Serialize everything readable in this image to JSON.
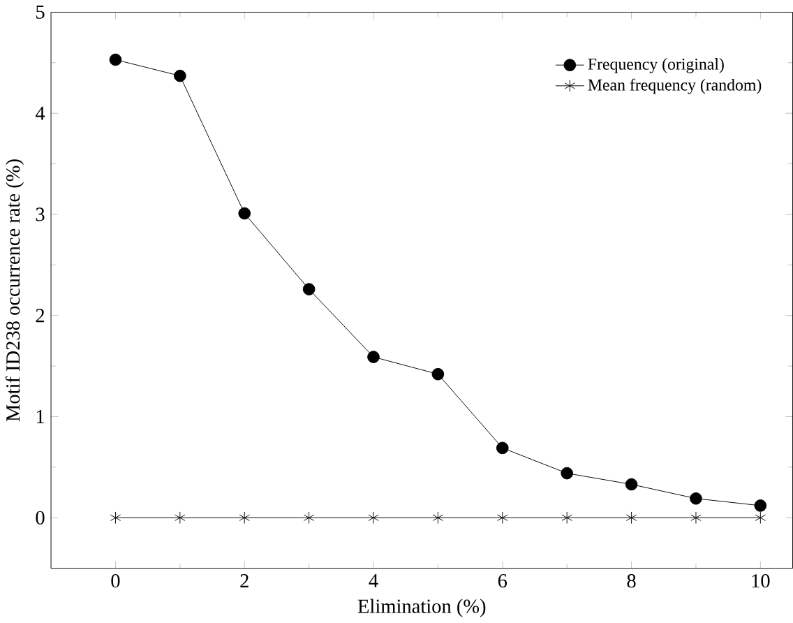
{
  "chart_data": {
    "type": "line",
    "xlabel": "Elimination (%)",
    "ylabel": "Motif ID238 occurrence rate (%)",
    "x": [
      0,
      1,
      2,
      3,
      4,
      5,
      6,
      7,
      8,
      9,
      10
    ],
    "series": [
      {
        "name": "Frequency (original)",
        "color": "#000000",
        "marker": "circle",
        "values": [
          4.53,
          4.37,
          3.01,
          2.26,
          1.59,
          1.42,
          0.69,
          0.44,
          0.33,
          0.19,
          0.12
        ]
      },
      {
        "name": "Mean frequency (random)",
        "color": "#000000",
        "marker": "cross",
        "values": [
          0,
          0,
          0,
          0,
          0,
          0,
          0,
          0,
          0,
          0,
          0
        ]
      }
    ],
    "xlim": [
      -1,
      10.5
    ],
    "ylim": [
      -0.5,
      5
    ],
    "xticks": [
      0,
      2,
      4,
      6,
      8,
      10
    ],
    "yticks": [
      0,
      1,
      2,
      3,
      4,
      5
    ],
    "legend": "top right",
    "line_style": "solid"
  }
}
